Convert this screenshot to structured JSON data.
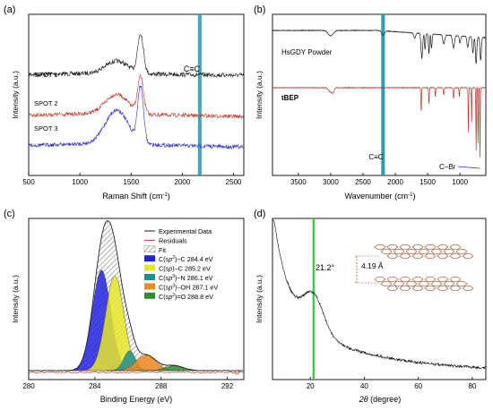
{
  "panels": {
    "a": {
      "label": "(a)",
      "xlabel_main": "Raman Shift (cm",
      "xlabel_sup": "-1",
      "xlabel_end": ")",
      "ylabel": "Intensity (a.u.)",
      "xlim": [
        500,
        2600
      ],
      "xticks": [
        "500",
        "1000",
        "1500",
        "2000",
        "2500"
      ],
      "spots": [
        {
          "name": "SPOT 1",
          "color": "#1a1a1a"
        },
        {
          "name": "SPOT 2",
          "color": "#c0392b"
        },
        {
          "name": "SPOT 3",
          "color": "#2b2bd6"
        }
      ],
      "band_label": "C≡C",
      "band_x": 2170,
      "band_color": "#2a9fb3"
    },
    "b": {
      "label": "(b)",
      "xlabel_main": "Wavenumber (cm",
      "xlabel_sup": "-1",
      "xlabel_end": ")",
      "ylabel": "Intensity (a.u.)",
      "xlim": [
        3900,
        600
      ],
      "xticks": [
        "3500",
        "3000",
        "2500",
        "2000",
        "1500",
        "1000"
      ],
      "series": [
        {
          "name": "HsGDY Powder",
          "color": "#1a1a1a"
        },
        {
          "name": "tBEP",
          "color": "#b5382e"
        }
      ],
      "band_label": "C≡C",
      "band_x": 2190,
      "band_color": "#2a9fb3",
      "cbr_label": "C−Br",
      "cbr_color": "#2b2bd6"
    },
    "c": {
      "label": "(c)",
      "xlabel": "Binding Energy (eV)",
      "ylabel": "Intensity (a.u.)",
      "xlim": [
        280,
        293
      ],
      "xticks": [
        "280",
        "284",
        "288",
        "292"
      ],
      "legend": [
        {
          "label": "Experimental Data",
          "kind": "line",
          "color": "#1a1a1a"
        },
        {
          "label": "Residuals",
          "kind": "line",
          "color": "#c0392b"
        },
        {
          "label": "Fit",
          "kind": "hatch",
          "color": "#9a9a9a"
        },
        {
          "pre": "C(",
          "it": "sp",
          "sup": "2",
          "post": ")−C  284.4 eV",
          "kind": "box",
          "color": "#2323e0"
        },
        {
          "pre": "C(",
          "it": "sp",
          "sup": "",
          "post": ")−C  285.2 eV",
          "kind": "box",
          "color": "#e6e62a"
        },
        {
          "pre": "C(",
          "it": "sp",
          "sup": "3",
          "post": ")−N  286.1 eV",
          "kind": "box",
          "color": "#1f8f8f"
        },
        {
          "pre": "C(",
          "it": "sp",
          "sup": "3",
          "post": ")−OH  287.1 eV",
          "kind": "box",
          "color": "#ef8a1c"
        },
        {
          "pre": "C(",
          "it": "sp",
          "sup": "2",
          "post": ")=O  288.8 eV",
          "kind": "box",
          "color": "#2f8f2f"
        }
      ]
    },
    "d": {
      "label": "(d)",
      "xlabel_it": "2θ",
      "xlabel_end": " (degree)",
      "ylabel": "Intensity (a.u.)",
      "xlim": [
        6,
        85
      ],
      "xticks": [
        "20",
        "40",
        "60",
        "80"
      ],
      "peak_label": "21.2°",
      "peak_x": 21.2,
      "line_color": "#2ecc40",
      "spacing_label": "4.19 Å",
      "spacing_color": "#a0522d"
    }
  },
  "chart_data": [
    {
      "type": "line",
      "panel": "a",
      "xlabel": "Raman Shift (cm-1)",
      "ylabel": "Intensity (a.u.)",
      "xlim": [
        500,
        2600
      ],
      "peaks_cm": [
        1360,
        1590
      ],
      "annotation": {
        "label": "C≡C",
        "x": 2170
      },
      "series": [
        {
          "name": "SPOT 1",
          "x": [
            500,
            800,
            1000,
            1200,
            1360,
            1450,
            1550,
            1590,
            1630,
            1700,
            1900,
            2100,
            2300,
            2600
          ],
          "y": [
            0.62,
            0.64,
            0.66,
            0.7,
            0.78,
            0.72,
            0.82,
            1.0,
            0.8,
            0.7,
            0.66,
            0.65,
            0.63,
            0.62
          ]
        },
        {
          "name": "SPOT 2",
          "x": [
            500,
            800,
            1000,
            1200,
            1360,
            1450,
            1550,
            1590,
            1630,
            1700,
            1900,
            2100,
            2300,
            2600
          ],
          "y": [
            0.36,
            0.38,
            0.41,
            0.48,
            0.57,
            0.49,
            0.62,
            0.86,
            0.55,
            0.43,
            0.38,
            0.36,
            0.35,
            0.34
          ]
        },
        {
          "name": "SPOT 3",
          "x": [
            500,
            800,
            1000,
            1200,
            1360,
            1450,
            1550,
            1590,
            1630,
            1700,
            1900,
            2100,
            2300,
            2600
          ],
          "y": [
            0.1,
            0.12,
            0.15,
            0.24,
            0.34,
            0.25,
            0.4,
            0.7,
            0.3,
            0.16,
            0.1,
            0.08,
            0.07,
            0.06
          ]
        }
      ]
    },
    {
      "type": "line",
      "panel": "b",
      "xlabel": "Wavenumber (cm-1)",
      "ylabel": "Intensity (a.u.)",
      "xlim": [
        3900,
        600
      ],
      "annotations": [
        {
          "label": "C≡C",
          "x": 2190
        },
        {
          "label": "C−Br",
          "x": 700
        }
      ],
      "series": [
        {
          "name": "HsGDY Powder",
          "dips_cm": [
            3000,
            2190,
            1700,
            1590,
            1500,
            1450,
            1250,
            1100,
            880,
            750
          ]
        },
        {
          "name": "tBEP",
          "dips_cm": [
            3000,
            2190,
            1600,
            1480,
            1380,
            1250,
            1100,
            870,
            750,
            690
          ]
        }
      ]
    },
    {
      "type": "area",
      "panel": "c",
      "xlabel": "Binding Energy (eV)",
      "ylabel": "Intensity (a.u.)",
      "xlim": [
        280,
        293
      ],
      "components": [
        {
          "name": "C(sp2)−C",
          "center": 284.4,
          "amp": 0.71,
          "sigma": 0.55
        },
        {
          "name": "C(sp)−C",
          "center": 285.2,
          "amp": 0.67,
          "sigma": 0.55
        },
        {
          "name": "C(sp3)−N",
          "center": 286.1,
          "amp": 0.14,
          "sigma": 0.35
        },
        {
          "name": "C(sp3)−OH",
          "center": 287.1,
          "amp": 0.11,
          "sigma": 0.6
        },
        {
          "name": "C(sp2)=O",
          "center": 288.8,
          "amp": 0.035,
          "sigma": 0.55
        }
      ]
    },
    {
      "type": "line",
      "panel": "d",
      "xlabel": "2θ (degree)",
      "ylabel": "Intensity (a.u.)",
      "xlim": [
        6,
        85
      ],
      "peak": {
        "x": 21.2,
        "label": "21.2°"
      },
      "x": [
        6,
        8,
        10,
        12,
        14,
        16,
        18,
        20,
        21.2,
        23,
        25,
        28,
        32,
        38,
        45,
        55,
        65,
        75,
        85
      ],
      "y": [
        0.92,
        0.72,
        0.58,
        0.48,
        0.4,
        0.36,
        0.38,
        0.44,
        0.46,
        0.42,
        0.34,
        0.28,
        0.22,
        0.17,
        0.12,
        0.08,
        0.05,
        0.03,
        0.02
      ]
    }
  ]
}
